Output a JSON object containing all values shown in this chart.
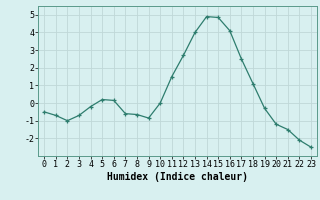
{
  "x": [
    0,
    1,
    2,
    3,
    4,
    5,
    6,
    7,
    8,
    9,
    10,
    11,
    12,
    13,
    14,
    15,
    16,
    17,
    18,
    19,
    20,
    21,
    22,
    23
  ],
  "y": [
    -0.5,
    -0.7,
    -1.0,
    -0.7,
    -0.2,
    0.2,
    0.15,
    -0.6,
    -0.65,
    -0.85,
    0.0,
    1.5,
    2.7,
    4.0,
    4.9,
    4.85,
    4.1,
    2.5,
    1.1,
    -0.3,
    -1.2,
    -1.5,
    -2.1,
    -2.5
  ],
  "xlim": [
    -0.5,
    23.5
  ],
  "ylim": [
    -3,
    5.5
  ],
  "yticks": [
    -2,
    -1,
    0,
    1,
    2,
    3,
    4,
    5
  ],
  "xticks": [
    0,
    1,
    2,
    3,
    4,
    5,
    6,
    7,
    8,
    9,
    10,
    11,
    12,
    13,
    14,
    15,
    16,
    17,
    18,
    19,
    20,
    21,
    22,
    23
  ],
  "xlabel": "Humidex (Indice chaleur)",
  "line_color": "#2e7d6e",
  "marker": "+",
  "bg_color": "#d8f0f0",
  "grid_color": "#c0d8d8",
  "xlabel_fontsize": 7,
  "tick_fontsize": 6
}
